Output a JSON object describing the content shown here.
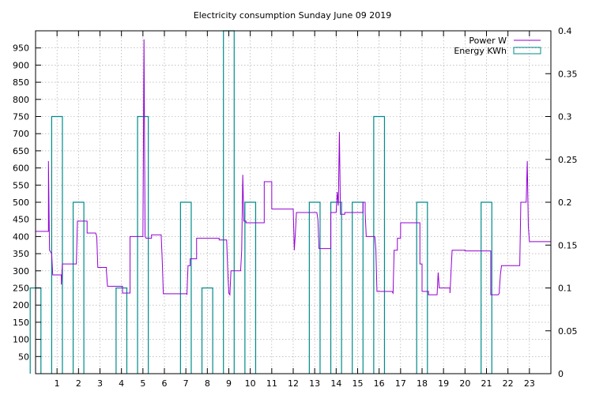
{
  "chart_data": {
    "type": "line",
    "title": "Electricity consumption Sunday June 09 2019",
    "x_ticks": [
      "1",
      "2",
      "3",
      "4",
      "5",
      "6",
      "7",
      "8",
      "9",
      "10",
      "11",
      "12",
      "13",
      "14",
      "15",
      "16",
      "17",
      "18",
      "19",
      "20",
      "21",
      "22",
      "23"
    ],
    "xlim": [
      0,
      24
    ],
    "y_left": {
      "ylim": [
        0,
        1000
      ],
      "ticks": [
        "50",
        "100",
        "150",
        "200",
        "250",
        "300",
        "350",
        "400",
        "450",
        "500",
        "550",
        "600",
        "650",
        "700",
        "750",
        "800",
        "850",
        "900",
        "950"
      ]
    },
    "y_right": {
      "ylim": [
        0,
        0.4
      ],
      "ticks": [
        "0",
        "0.05",
        "0.1",
        "0.15",
        "0.2",
        "0.25",
        "0.3",
        "0.35",
        "0.4"
      ]
    },
    "grid": true,
    "legend_position": "top-right",
    "series": [
      {
        "name": "Power W",
        "axis": "left",
        "style": "step-line",
        "color": "#9400d3",
        "points": [
          [
            0,
            415
          ],
          [
            0.6,
            415
          ],
          [
            0.6,
            620
          ],
          [
            0.65,
            360
          ],
          [
            0.75,
            350
          ],
          [
            0.8,
            288
          ],
          [
            1.2,
            288
          ],
          [
            1.2,
            260
          ],
          [
            1.25,
            320
          ],
          [
            1.9,
            320
          ],
          [
            1.95,
            445
          ],
          [
            2.4,
            445
          ],
          [
            2.4,
            410
          ],
          [
            2.8,
            410
          ],
          [
            2.85,
            400
          ],
          [
            2.9,
            310
          ],
          [
            3.3,
            310
          ],
          [
            3.3,
            300
          ],
          [
            3.35,
            255
          ],
          [
            4.05,
            255
          ],
          [
            4.05,
            235
          ],
          [
            4.4,
            235
          ],
          [
            4.4,
            400
          ],
          [
            5.0,
            400
          ],
          [
            5.05,
            975
          ],
          [
            5.1,
            400
          ],
          [
            5.15,
            395
          ],
          [
            5.4,
            395
          ],
          [
            5.4,
            405
          ],
          [
            5.85,
            405
          ],
          [
            5.9,
            330
          ],
          [
            5.95,
            233
          ],
          [
            7.05,
            233
          ],
          [
            7.05,
            230
          ],
          [
            7.1,
            315
          ],
          [
            7.2,
            315
          ],
          [
            7.2,
            335
          ],
          [
            7.5,
            335
          ],
          [
            7.5,
            395
          ],
          [
            8.55,
            395
          ],
          [
            8.55,
            390
          ],
          [
            8.9,
            390
          ],
          [
            8.95,
            300
          ],
          [
            9.0,
            235
          ],
          [
            9.05,
            230
          ],
          [
            9.1,
            300
          ],
          [
            9.55,
            300
          ],
          [
            9.6,
            360
          ],
          [
            9.65,
            580
          ],
          [
            9.7,
            445
          ],
          [
            9.8,
            445
          ],
          [
            9.8,
            440
          ],
          [
            10.65,
            440
          ],
          [
            10.65,
            560
          ],
          [
            11.0,
            560
          ],
          [
            11.0,
            480
          ],
          [
            12.0,
            480
          ],
          [
            12.05,
            360
          ],
          [
            12.1,
            410
          ],
          [
            12.15,
            470
          ],
          [
            13.1,
            470
          ],
          [
            13.15,
            450
          ],
          [
            13.2,
            365
          ],
          [
            13.75,
            365
          ],
          [
            13.75,
            470
          ],
          [
            14.0,
            470
          ],
          [
            14.05,
            530
          ],
          [
            14.1,
            490
          ],
          [
            14.15,
            705
          ],
          [
            14.2,
            465
          ],
          [
            14.4,
            465
          ],
          [
            14.4,
            470
          ],
          [
            15.25,
            470
          ],
          [
            15.25,
            500
          ],
          [
            15.35,
            500
          ],
          [
            15.35,
            470
          ],
          [
            15.4,
            400
          ],
          [
            15.8,
            400
          ],
          [
            15.85,
            360
          ],
          [
            15.9,
            240
          ],
          [
            16.6,
            240
          ],
          [
            16.65,
            235
          ],
          [
            16.7,
            360
          ],
          [
            16.85,
            360
          ],
          [
            16.85,
            395
          ],
          [
            17.0,
            395
          ],
          [
            17.0,
            440
          ],
          [
            17.9,
            440
          ],
          [
            17.9,
            320
          ],
          [
            18.0,
            320
          ],
          [
            18.0,
            240
          ],
          [
            18.3,
            240
          ],
          [
            18.3,
            230
          ],
          [
            18.7,
            230
          ],
          [
            18.75,
            295
          ],
          [
            18.8,
            250
          ],
          [
            19.3,
            250
          ],
          [
            19.3,
            235
          ],
          [
            19.4,
            360
          ],
          [
            20.0,
            360
          ],
          [
            20.0,
            358
          ],
          [
            21.2,
            358
          ],
          [
            21.2,
            230
          ],
          [
            21.55,
            230
          ],
          [
            21.6,
            235
          ],
          [
            21.6,
            245
          ],
          [
            21.65,
            290
          ],
          [
            21.7,
            315
          ],
          [
            22.55,
            315
          ],
          [
            22.6,
            500
          ],
          [
            22.85,
            500
          ],
          [
            22.9,
            620
          ],
          [
            22.95,
            430
          ],
          [
            23.0,
            385
          ],
          [
            24,
            385
          ]
        ]
      },
      {
        "name": "Energy KWh",
        "axis": "right",
        "style": "bars",
        "color": "#008b8b",
        "bars": [
          {
            "x": 0,
            "value": 0.1
          },
          {
            "x": 1,
            "value": 0.3
          },
          {
            "x": 2,
            "value": 0.2
          },
          {
            "x": 4,
            "value": 0.1
          },
          {
            "x": 5,
            "value": 0.3
          },
          {
            "x": 7,
            "value": 0.2
          },
          {
            "x": 8,
            "value": 0.1
          },
          {
            "x": 9,
            "value": 0.4
          },
          {
            "x": 10,
            "value": 0.2
          },
          {
            "x": 13,
            "value": 0.2
          },
          {
            "x": 14,
            "value": 0.2
          },
          {
            "x": 15,
            "value": 0.2
          },
          {
            "x": 16,
            "value": 0.3
          },
          {
            "x": 18,
            "value": 0.2
          },
          {
            "x": 21,
            "value": 0.2
          }
        ]
      }
    ]
  }
}
